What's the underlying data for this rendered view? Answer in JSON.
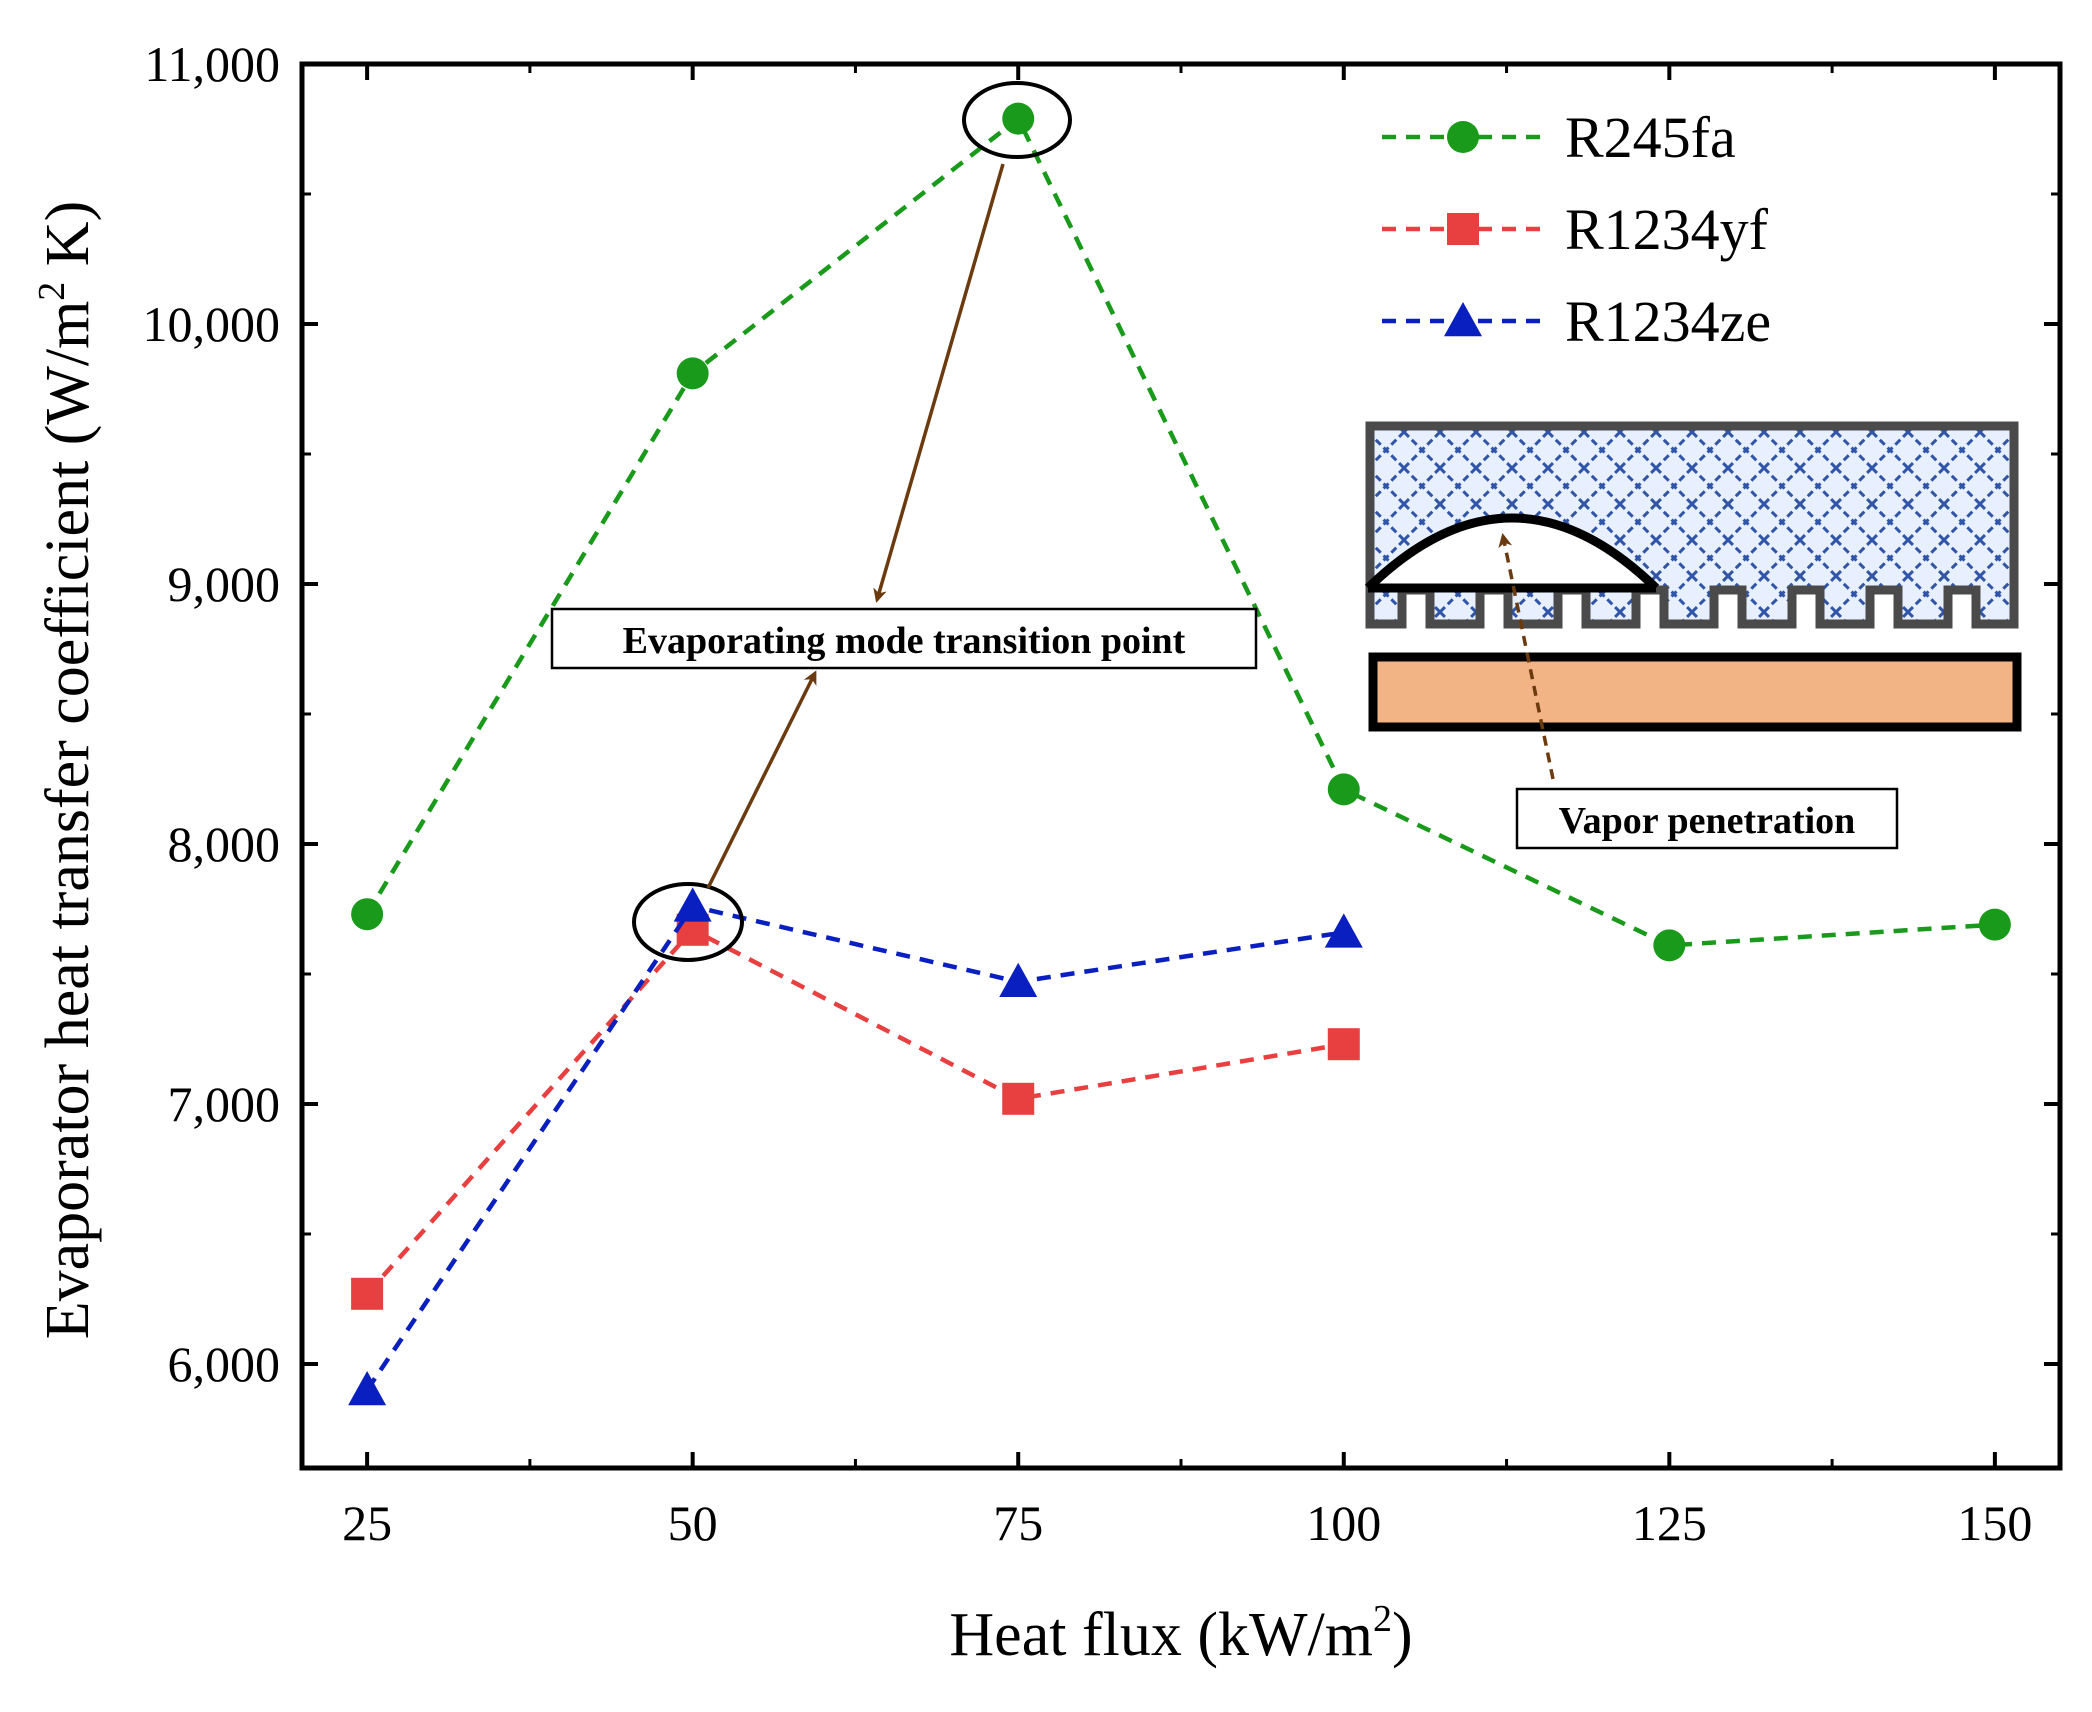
{
  "chart_data": {
    "type": "line",
    "title": "",
    "xlabel": "Heat flux (kW/m",
    "xlabel_sup": "2",
    "xlabel_end": ")",
    "ylabel": "Evaporator heat transfer coefficient (W/m",
    "ylabel_sup": "2",
    "ylabel_end": " K)",
    "xlim": [
      20,
      155
    ],
    "ylim": [
      5600,
      11000
    ],
    "x_ticks": [
      25,
      50,
      75,
      100,
      125,
      150
    ],
    "x_tick_labels": [
      "25",
      "50",
      "75",
      "100",
      "125",
      "150"
    ],
    "y_ticks": [
      6000,
      7000,
      8000,
      9000,
      10000,
      11000
    ],
    "y_tick_labels": [
      "6,000",
      "7,000",
      "8,000",
      "9,000",
      "10,000",
      "11,000"
    ],
    "grid": false,
    "legend_position": "top-right",
    "series": [
      {
        "name": "R245fa",
        "color": "#1a9a1a",
        "marker": "circle",
        "x": [
          25,
          50,
          75,
          100,
          125,
          150
        ],
        "values": [
          7730,
          9810,
          10790,
          8210,
          7610,
          7690
        ]
      },
      {
        "name": "R1234yf",
        "color": "#e84040",
        "marker": "square",
        "x": [
          25,
          50,
          75,
          100
        ],
        "values": [
          6270,
          7670,
          7020,
          7230
        ]
      },
      {
        "name": "R1234ze",
        "color": "#0a1fbf",
        "marker": "triangle",
        "x": [
          25,
          50,
          75,
          100
        ],
        "values": [
          5900,
          7760,
          7470,
          7660
        ]
      }
    ],
    "annotations": [
      {
        "text": "Evaporating mode transition point",
        "circled_points": [
          {
            "x": 75,
            "y": 10790
          },
          {
            "x": 50,
            "y": 7720
          }
        ],
        "arrow_color": "#6b3a0e"
      },
      {
        "text": "Vapor penetration",
        "arrow_color": "#6b3a0e"
      }
    ]
  }
}
